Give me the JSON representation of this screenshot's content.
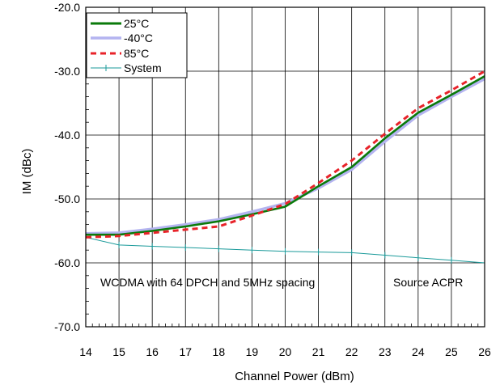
{
  "chart_data": {
    "type": "line",
    "xlabel": "Channel Power (dBm)",
    "ylabel": "IM (dBc)",
    "xlim": [
      14,
      26
    ],
    "ylim": [
      -70,
      -20
    ],
    "x_ticks": [
      "14",
      "15",
      "16",
      "17",
      "18",
      "19",
      "20",
      "21",
      "22",
      "23",
      "24",
      "25",
      "26"
    ],
    "y_ticks": [
      "-20.0",
      "-30.0",
      "-40.0",
      "-50.0",
      "-60.0",
      "-70.0"
    ],
    "grid": "major",
    "legend_position": "top-left",
    "annotations": [
      "WCDMA with 64 DPCH and 5MHz spacing",
      "Source ACPR"
    ],
    "series": [
      {
        "name": "25°C",
        "color": "#0a7a0a",
        "style": "solid",
        "x": [
          14,
          15,
          16,
          17,
          18,
          19,
          20,
          21,
          22,
          23,
          24,
          25,
          26
        ],
        "y": [
          -55.6,
          -55.6,
          -55.0,
          -54.3,
          -53.5,
          -52.4,
          -51.2,
          -48.0,
          -45.0,
          -40.5,
          -36.5,
          -33.7,
          -30.8
        ]
      },
      {
        "name": "-40°C",
        "color": "#b4b4f0",
        "style": "solid",
        "x": [
          14,
          15,
          16,
          17,
          18,
          19,
          20,
          21,
          22,
          23,
          24,
          25,
          26
        ],
        "y": [
          -55.4,
          -55.3,
          -54.7,
          -54.0,
          -53.2,
          -52.0,
          -50.7,
          -48.3,
          -45.4,
          -41.0,
          -36.9,
          -34.0,
          -31.2
        ]
      },
      {
        "name": "85°C",
        "color": "#e8232a",
        "style": "dashed",
        "x": [
          14,
          15,
          16,
          17,
          18,
          19,
          20,
          21,
          22,
          23,
          24,
          25,
          26
        ],
        "y": [
          -56.0,
          -55.8,
          -55.3,
          -54.8,
          -54.3,
          -52.6,
          -50.8,
          -47.5,
          -44.0,
          -39.8,
          -35.8,
          -33.0,
          -30.0
        ]
      },
      {
        "name": "System",
        "color": "#1a9a9a",
        "style": "solid-marker",
        "x": [
          14,
          15,
          16,
          17,
          18,
          19,
          20,
          21,
          22,
          23,
          24,
          25,
          26
        ],
        "y": [
          -56.0,
          -57.2,
          -57.4,
          -57.6,
          -57.8,
          -58.0,
          -58.2,
          -58.3,
          -58.4,
          -58.8,
          -59.2,
          -59.6,
          -60.0
        ]
      }
    ]
  }
}
